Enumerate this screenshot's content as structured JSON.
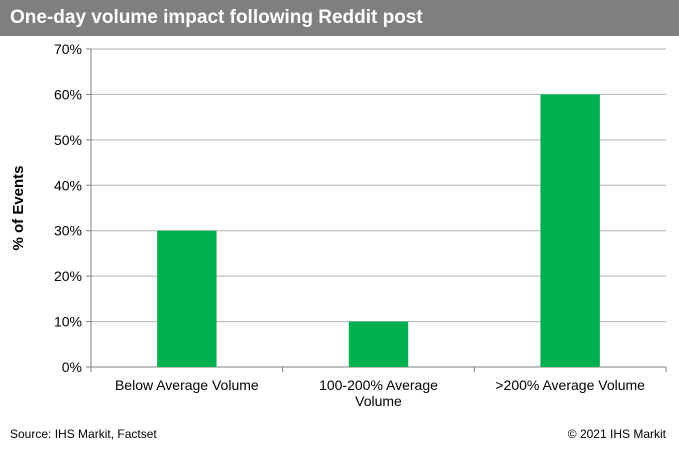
{
  "header": {
    "title": "One-day volume impact following Reddit post"
  },
  "footer": {
    "source": "Source: IHS Markit, Factset",
    "copyright": "© 2021 IHS Markit"
  },
  "colors": {
    "header_bg": "#7f7f7f",
    "bar": "#00b050",
    "grid": "#b2b2b2",
    "axis": "#7f7f7f"
  },
  "chart_data": {
    "type": "bar",
    "title": "",
    "xlabel": "",
    "ylabel": "% of Events",
    "categories": [
      [
        "Below Average Volume"
      ],
      [
        "100-200% Average",
        "Volume"
      ],
      [
        ">200% Average Volume"
      ]
    ],
    "values": [
      30,
      10,
      60
    ],
    "ylim": [
      0,
      70
    ],
    "yticks": [
      0,
      10,
      20,
      30,
      40,
      50,
      60,
      70
    ],
    "ytick_labels": [
      "0%",
      "10%",
      "20%",
      "30%",
      "40%",
      "50%",
      "60%",
      "70%"
    ],
    "grid": true,
    "legend": "none"
  }
}
